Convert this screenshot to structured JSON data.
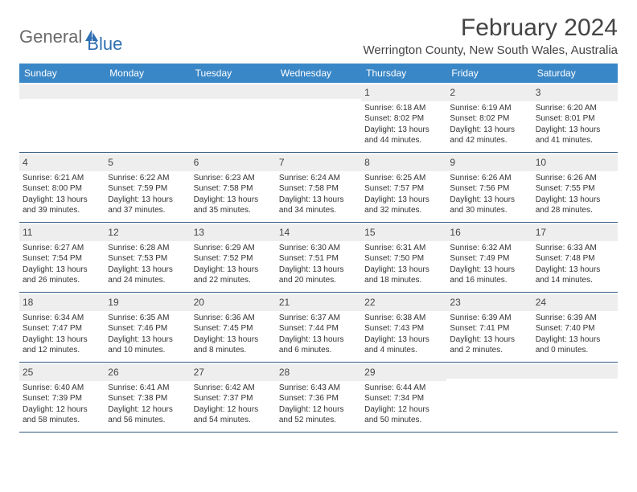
{
  "logo": {
    "word1": "General",
    "word2": "Blue"
  },
  "title": "February 2024",
  "location": "Werrington County, New South Wales, Australia",
  "dayNames": [
    "Sunday",
    "Monday",
    "Tuesday",
    "Wednesday",
    "Thursday",
    "Friday",
    "Saturday"
  ],
  "colors": {
    "headerBg": "#3a87c7",
    "weekBorder": "#335a80",
    "dayNumBg": "#eeeeee",
    "logoGray": "#6a6a6a",
    "logoBlue": "#2f6fb2"
  },
  "weeks": [
    [
      null,
      null,
      null,
      null,
      {
        "n": "1",
        "sunrise": "6:18 AM",
        "sunset": "8:02 PM",
        "d1": "Daylight: 13 hours",
        "d2": "and 44 minutes."
      },
      {
        "n": "2",
        "sunrise": "6:19 AM",
        "sunset": "8:02 PM",
        "d1": "Daylight: 13 hours",
        "d2": "and 42 minutes."
      },
      {
        "n": "3",
        "sunrise": "6:20 AM",
        "sunset": "8:01 PM",
        "d1": "Daylight: 13 hours",
        "d2": "and 41 minutes."
      }
    ],
    [
      {
        "n": "4",
        "sunrise": "6:21 AM",
        "sunset": "8:00 PM",
        "d1": "Daylight: 13 hours",
        "d2": "and 39 minutes."
      },
      {
        "n": "5",
        "sunrise": "6:22 AM",
        "sunset": "7:59 PM",
        "d1": "Daylight: 13 hours",
        "d2": "and 37 minutes."
      },
      {
        "n": "6",
        "sunrise": "6:23 AM",
        "sunset": "7:58 PM",
        "d1": "Daylight: 13 hours",
        "d2": "and 35 minutes."
      },
      {
        "n": "7",
        "sunrise": "6:24 AM",
        "sunset": "7:58 PM",
        "d1": "Daylight: 13 hours",
        "d2": "and 34 minutes."
      },
      {
        "n": "8",
        "sunrise": "6:25 AM",
        "sunset": "7:57 PM",
        "d1": "Daylight: 13 hours",
        "d2": "and 32 minutes."
      },
      {
        "n": "9",
        "sunrise": "6:26 AM",
        "sunset": "7:56 PM",
        "d1": "Daylight: 13 hours",
        "d2": "and 30 minutes."
      },
      {
        "n": "10",
        "sunrise": "6:26 AM",
        "sunset": "7:55 PM",
        "d1": "Daylight: 13 hours",
        "d2": "and 28 minutes."
      }
    ],
    [
      {
        "n": "11",
        "sunrise": "6:27 AM",
        "sunset": "7:54 PM",
        "d1": "Daylight: 13 hours",
        "d2": "and 26 minutes."
      },
      {
        "n": "12",
        "sunrise": "6:28 AM",
        "sunset": "7:53 PM",
        "d1": "Daylight: 13 hours",
        "d2": "and 24 minutes."
      },
      {
        "n": "13",
        "sunrise": "6:29 AM",
        "sunset": "7:52 PM",
        "d1": "Daylight: 13 hours",
        "d2": "and 22 minutes."
      },
      {
        "n": "14",
        "sunrise": "6:30 AM",
        "sunset": "7:51 PM",
        "d1": "Daylight: 13 hours",
        "d2": "and 20 minutes."
      },
      {
        "n": "15",
        "sunrise": "6:31 AM",
        "sunset": "7:50 PM",
        "d1": "Daylight: 13 hours",
        "d2": "and 18 minutes."
      },
      {
        "n": "16",
        "sunrise": "6:32 AM",
        "sunset": "7:49 PM",
        "d1": "Daylight: 13 hours",
        "d2": "and 16 minutes."
      },
      {
        "n": "17",
        "sunrise": "6:33 AM",
        "sunset": "7:48 PM",
        "d1": "Daylight: 13 hours",
        "d2": "and 14 minutes."
      }
    ],
    [
      {
        "n": "18",
        "sunrise": "6:34 AM",
        "sunset": "7:47 PM",
        "d1": "Daylight: 13 hours",
        "d2": "and 12 minutes."
      },
      {
        "n": "19",
        "sunrise": "6:35 AM",
        "sunset": "7:46 PM",
        "d1": "Daylight: 13 hours",
        "d2": "and 10 minutes."
      },
      {
        "n": "20",
        "sunrise": "6:36 AM",
        "sunset": "7:45 PM",
        "d1": "Daylight: 13 hours",
        "d2": "and 8 minutes."
      },
      {
        "n": "21",
        "sunrise": "6:37 AM",
        "sunset": "7:44 PM",
        "d1": "Daylight: 13 hours",
        "d2": "and 6 minutes."
      },
      {
        "n": "22",
        "sunrise": "6:38 AM",
        "sunset": "7:43 PM",
        "d1": "Daylight: 13 hours",
        "d2": "and 4 minutes."
      },
      {
        "n": "23",
        "sunrise": "6:39 AM",
        "sunset": "7:41 PM",
        "d1": "Daylight: 13 hours",
        "d2": "and 2 minutes."
      },
      {
        "n": "24",
        "sunrise": "6:39 AM",
        "sunset": "7:40 PM",
        "d1": "Daylight: 13 hours",
        "d2": "and 0 minutes."
      }
    ],
    [
      {
        "n": "25",
        "sunrise": "6:40 AM",
        "sunset": "7:39 PM",
        "d1": "Daylight: 12 hours",
        "d2": "and 58 minutes."
      },
      {
        "n": "26",
        "sunrise": "6:41 AM",
        "sunset": "7:38 PM",
        "d1": "Daylight: 12 hours",
        "d2": "and 56 minutes."
      },
      {
        "n": "27",
        "sunrise": "6:42 AM",
        "sunset": "7:37 PM",
        "d1": "Daylight: 12 hours",
        "d2": "and 54 minutes."
      },
      {
        "n": "28",
        "sunrise": "6:43 AM",
        "sunset": "7:36 PM",
        "d1": "Daylight: 12 hours",
        "d2": "and 52 minutes."
      },
      {
        "n": "29",
        "sunrise": "6:44 AM",
        "sunset": "7:34 PM",
        "d1": "Daylight: 12 hours",
        "d2": "and 50 minutes."
      },
      null,
      null
    ]
  ]
}
